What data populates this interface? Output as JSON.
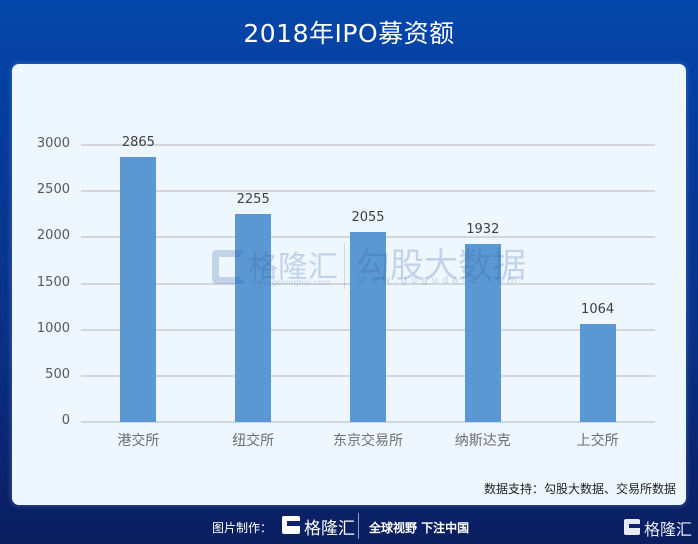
{
  "header": {
    "title": "2018年IPO募资额"
  },
  "chart_data": {
    "type": "bar",
    "title": "2018年IPO募资额",
    "categories": [
      "港交所",
      "纽交所",
      "东京交易所",
      "纳斯达克",
      "上交所"
    ],
    "values": [
      2865,
      2255,
      2055,
      1932,
      1064
    ],
    "value_labels": [
      "2865",
      "2255",
      "2055",
      "1932",
      "1064"
    ],
    "xlabel": "",
    "ylabel": "",
    "ylim": [
      0,
      3000
    ],
    "yticks": [
      "0",
      "500",
      "1000",
      "1500",
      "2000",
      "2500",
      "3000"
    ],
    "grid": true,
    "legend": null,
    "bar_color": "#5B97D3"
  },
  "watermark": {
    "brand1": "格隆汇",
    "brand1_url": "www.gelonghui.com",
    "brand2": "勾股大数据",
    "brand2_url": "www.gogudata.com"
  },
  "source": {
    "text": "数据支持：勾股大数据、交易所数据"
  },
  "footer": {
    "made_by": "图片制作：",
    "logo_text": "格隆汇",
    "slogan": "全球视野 下注中国",
    "corner_logo_text": "格隆汇"
  },
  "colors": {
    "background_top": "#0547AB",
    "background_bottom": "#0B1F5F",
    "card": "#EEF6FE",
    "bar": "#5B97D3",
    "grid": "#D2D7DD"
  }
}
